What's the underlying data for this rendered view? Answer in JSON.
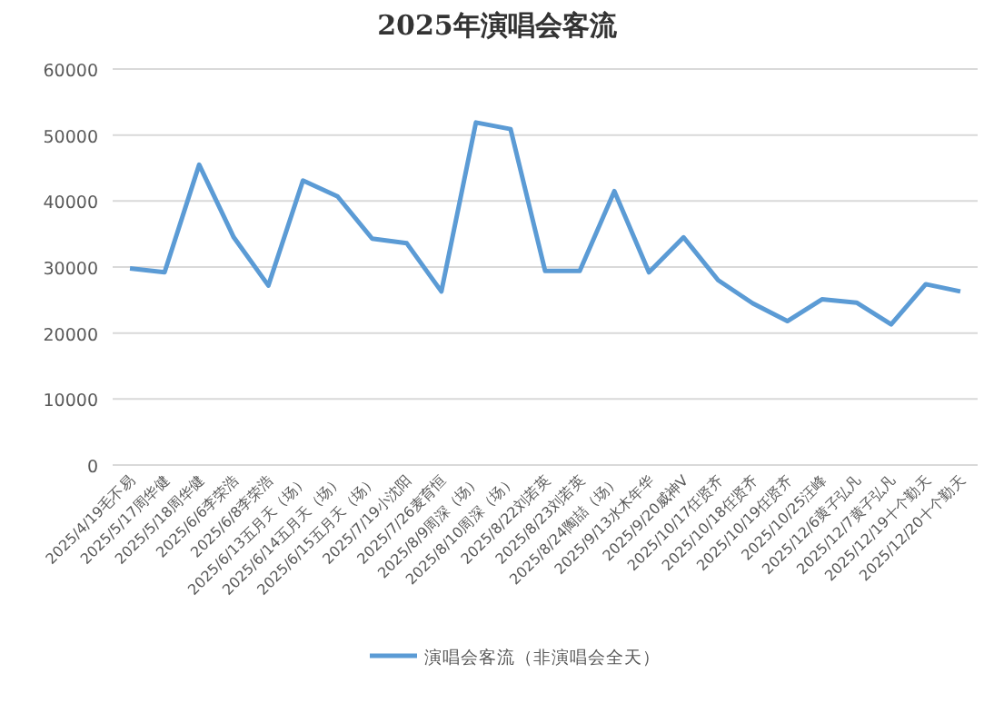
{
  "chart_data": {
    "type": "line",
    "title": "2025年演唱会客流",
    "categories": [
      "2025/4/19毛不易",
      "2025/5/17周华健",
      "2025/5/18周华健",
      "2025/6/6李荣浩",
      "2025/6/8李荣浩",
      "2025/6/13五月天（场）",
      "2025/6/14五月天（场）",
      "2025/6/15五月天（场）",
      "2025/7/19小沈阳",
      "2025/7/26麦育恒",
      "2025/8/9周深（场）",
      "2025/8/10周深（场）",
      "2025/8/22刘若英",
      "2025/8/23刘若英",
      "2025/8/24陶喆（场）",
      "2025/9/13水木年华",
      "2025/9/20威神V",
      "2025/10/17任贤齐",
      "2025/10/18任贤齐",
      "2025/10/19任贤齐",
      "2025/10/25汪峰",
      "2025/12/6黄子弘凡",
      "2025/12/7黄子弘凡",
      "2025/12/19十个勤天",
      "2025/12/20十个勤天"
    ],
    "series": [
      {
        "name": "演唱会客流（非演唱会全天）",
        "color": "#5b9bd5",
        "values": [
          29800,
          29200,
          45500,
          34500,
          27200,
          43100,
          40700,
          34300,
          33600,
          26300,
          51900,
          50900,
          29400,
          29400,
          41500,
          29200,
          34500,
          28000,
          24500,
          21800,
          25100,
          24600,
          21300,
          27400,
          26300
        ]
      }
    ],
    "ylim": [
      0,
      60000
    ],
    "yticks": [
      0,
      10000,
      20000,
      30000,
      40000,
      50000,
      60000
    ],
    "grid": "y",
    "legend": "bottom",
    "marker": "none",
    "line_style": "solid"
  }
}
